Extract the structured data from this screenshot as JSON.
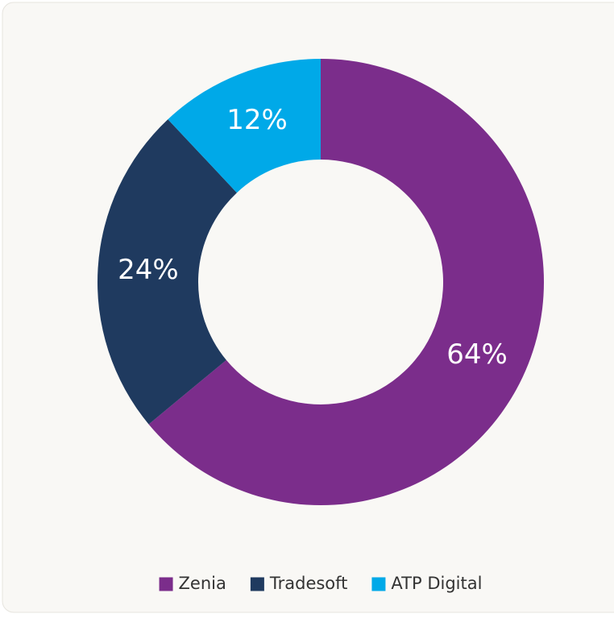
{
  "chart_data": {
    "type": "donut",
    "categories": [
      "Zenia",
      "Tradesoft",
      "ATP Digital"
    ],
    "values": [
      64,
      24,
      12
    ],
    "value_labels": [
      "64%",
      "24%",
      "12%"
    ],
    "colors": [
      "#7b2d8b",
      "#1f3a5f",
      "#00a9e8"
    ],
    "legend": "bottom"
  }
}
